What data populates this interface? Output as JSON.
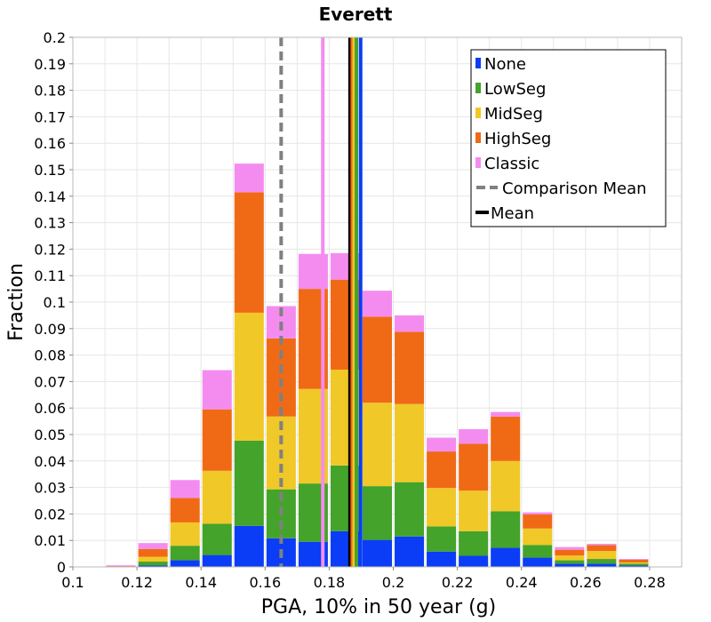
{
  "chart_data": {
    "type": "bar",
    "stacked": true,
    "title": "Everett",
    "xlabel": "PGA, 10% in 50 year (g)",
    "ylabel": "Fraction",
    "xlim": [
      0.1,
      0.29
    ],
    "ylim": [
      0,
      0.2
    ],
    "grid": true,
    "legend_position": "top-right",
    "x_ticks": [
      "0.1",
      "0.12",
      "0.14",
      "0.16",
      "0.18",
      "0.2",
      "0.22",
      "0.24",
      "0.26",
      "0.28"
    ],
    "y_ticks": [
      "0",
      "0.01",
      "0.02",
      "0.03",
      "0.04",
      "0.05",
      "0.06",
      "0.07",
      "0.08",
      "0.09",
      "0.1",
      "0.11",
      "0.12",
      "0.13",
      "0.14",
      "0.15",
      "0.16",
      "0.17",
      "0.18",
      "0.19",
      "0.2"
    ],
    "bin_width": 0.01,
    "bin_centers": [
      0.115,
      0.125,
      0.135,
      0.145,
      0.155,
      0.165,
      0.175,
      0.185,
      0.195,
      0.205,
      0.215,
      0.225,
      0.235,
      0.245,
      0.255,
      0.265,
      0.275,
      0.285
    ],
    "series": [
      {
        "name": "None",
        "color": "#0a3df5",
        "values": [
          0.0,
          0.0005,
          0.0025,
          0.0045,
          0.0155,
          0.0108,
          0.0095,
          0.0135,
          0.0102,
          0.0115,
          0.0058,
          0.0042,
          0.0072,
          0.0035,
          0.0012,
          0.0012,
          0.0005,
          0.0
        ]
      },
      {
        "name": "LowSeg",
        "color": "#44a32a",
        "values": [
          0.0,
          0.0015,
          0.0055,
          0.0118,
          0.0322,
          0.0185,
          0.022,
          0.0248,
          0.0203,
          0.0205,
          0.0095,
          0.0093,
          0.0138,
          0.0048,
          0.0013,
          0.0018,
          0.0007,
          0.0
        ]
      },
      {
        "name": "MidSeg",
        "color": "#f0c827",
        "values": [
          0.0,
          0.0018,
          0.0088,
          0.02,
          0.0483,
          0.0275,
          0.0357,
          0.0362,
          0.0315,
          0.0295,
          0.0145,
          0.0153,
          0.019,
          0.0062,
          0.0018,
          0.003,
          0.0005,
          0.0
        ]
      },
      {
        "name": "HighSeg",
        "color": "#f06a16",
        "values": [
          0.0003,
          0.003,
          0.0092,
          0.0232,
          0.0455,
          0.0295,
          0.0378,
          0.034,
          0.0325,
          0.0273,
          0.0138,
          0.0177,
          0.0168,
          0.0053,
          0.0022,
          0.0022,
          0.001,
          0.0
        ]
      },
      {
        "name": "Classic",
        "color": "#f48cf0",
        "values": [
          0.0003,
          0.0022,
          0.0068,
          0.0148,
          0.0108,
          0.0122,
          0.0132,
          0.01,
          0.0098,
          0.0062,
          0.0052,
          0.0055,
          0.0017,
          0.0008,
          0.001,
          0.0005,
          0.0003,
          0.0
        ]
      }
    ],
    "vertical_lines": [
      {
        "name": "Comparison Mean",
        "x": 0.165,
        "color": "#808080",
        "style": "dashed"
      },
      {
        "name": "Classic mean",
        "x": 0.178,
        "color": "#f48cf0",
        "style": "solid"
      },
      {
        "name": "Mean",
        "x": 0.1865,
        "color": "#000000",
        "style": "solid"
      },
      {
        "name": "HighSeg mean",
        "x": 0.1872,
        "color": "#f06a16",
        "style": "solid"
      },
      {
        "name": "MidSeg mean",
        "x": 0.1878,
        "color": "#f0c827",
        "style": "solid"
      },
      {
        "name": "LowSeg mean",
        "x": 0.1885,
        "color": "#44a32a",
        "style": "solid"
      },
      {
        "name": "None mean",
        "x": 0.1898,
        "color": "#0a3df5",
        "style": "solid"
      }
    ],
    "legend": [
      {
        "label": "None",
        "kind": "box",
        "color": "#0a3df5"
      },
      {
        "label": "LowSeg",
        "kind": "box",
        "color": "#44a32a"
      },
      {
        "label": "MidSeg",
        "kind": "box",
        "color": "#f0c827"
      },
      {
        "label": "HighSeg",
        "kind": "box",
        "color": "#f06a16"
      },
      {
        "label": "Classic",
        "kind": "box",
        "color": "#f48cf0"
      },
      {
        "label": "Comparison Mean",
        "kind": "dashed-line",
        "color": "#808080"
      },
      {
        "label": "Mean",
        "kind": "line",
        "color": "#000000"
      }
    ]
  }
}
